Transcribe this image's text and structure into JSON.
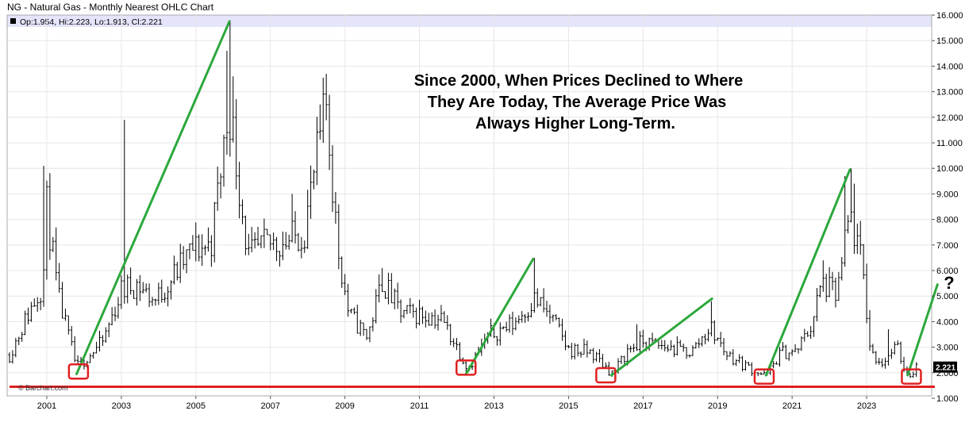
{
  "chart_data": {
    "type": "ohlc",
    "title": "NG - Natural Gas - Monthly Nearest OHLC Chart",
    "legend": "Op:1.954, Hi:2.223, Lo:1.913, Cl:2.221",
    "last_price_label": "2.221",
    "credit": "© Barchart.com",
    "annotation": [
      "Since 2000, When Prices Declined to Where",
      "They Are Today, The Average Price Was",
      "Always Higher Long-Term."
    ],
    "question_mark": "?",
    "ylim": [
      1.0,
      16.0
    ],
    "xlim": [
      2000.0,
      2025.0
    ],
    "y_ticks": [
      "1.000",
      "2.000",
      "3.000",
      "4.000",
      "5.000",
      "6.000",
      "7.000",
      "8.000",
      "9.000",
      "10.000",
      "11.000",
      "12.000",
      "13.000",
      "14.000",
      "15.000",
      "16.000"
    ],
    "x_ticks": [
      "2001",
      "2003",
      "2005",
      "2007",
      "2009",
      "2011",
      "2013",
      "2015",
      "2017",
      "2019",
      "2021",
      "2023"
    ],
    "support_level": 1.45,
    "colors": {
      "bars": "#000000",
      "trend_lines": "#2ca83c",
      "support_line": "#e02020",
      "boxes": "#e02020",
      "legend_band": "#e4e4fa"
    },
    "trend_lines": [
      {
        "x1": 2001.8,
        "y1": 1.95,
        "x2": 2005.9,
        "y2": 15.75
      },
      {
        "x1": 2012.25,
        "y1": 1.95,
        "x2": 2014.05,
        "y2": 6.45
      },
      {
        "x1": 2016.15,
        "y1": 1.9,
        "x2": 2018.85,
        "y2": 4.9
      },
      {
        "x1": 2020.3,
        "y1": 1.9,
        "x2": 2022.55,
        "y2": 9.95
      },
      {
        "x1": 2024.1,
        "y1": 1.9,
        "x2": 2024.9,
        "y2": 5.45
      }
    ],
    "bottom_boxes": [
      {
        "x": 2001.85,
        "y": 2.05
      },
      {
        "x": 2012.25,
        "y": 2.2
      },
      {
        "x": 2016.0,
        "y": 1.9
      },
      {
        "x": 2020.25,
        "y": 1.85
      },
      {
        "x": 2024.2,
        "y": 1.85
      }
    ],
    "anchors": [
      [
        2000.0,
        2.7
      ],
      [
        2000.5,
        4.3
      ],
      [
        2000.9,
        5.5
      ],
      [
        2001.0,
        8.5
      ],
      [
        2001.3,
        5.0
      ],
      [
        2001.8,
        2.2
      ],
      [
        2002.5,
        3.2
      ],
      [
        2003.0,
        5.2
      ],
      [
        2003.4,
        5.5
      ],
      [
        2003.9,
        4.8
      ],
      [
        2004.5,
        6.0
      ],
      [
        2004.9,
        6.8
      ],
      [
        2005.4,
        7.0
      ],
      [
        2005.9,
        12.5
      ],
      [
        2006.4,
        6.5
      ],
      [
        2006.9,
        7.0
      ],
      [
        2007.5,
        7.2
      ],
      [
        2007.9,
        7.5
      ],
      [
        2008.5,
        12.5
      ],
      [
        2008.8,
        7.0
      ],
      [
        2009.1,
        4.3
      ],
      [
        2009.6,
        3.4
      ],
      [
        2010.0,
        5.6
      ],
      [
        2010.5,
        4.3
      ],
      [
        2011.0,
        4.3
      ],
      [
        2011.6,
        4.1
      ],
      [
        2012.3,
        2.2
      ],
      [
        2012.9,
        3.5
      ],
      [
        2013.5,
        3.9
      ],
      [
        2014.1,
        4.9
      ],
      [
        2014.6,
        4.0
      ],
      [
        2015.0,
        2.9
      ],
      [
        2015.6,
        2.8
      ],
      [
        2016.2,
        1.95
      ],
      [
        2016.6,
        2.9
      ],
      [
        2017.0,
        3.2
      ],
      [
        2017.6,
        3.0
      ],
      [
        2018.3,
        2.8
      ],
      [
        2018.8,
        3.8
      ],
      [
        2019.2,
        2.8
      ],
      [
        2019.6,
        2.4
      ],
      [
        2020.3,
        1.85
      ],
      [
        2020.7,
        2.8
      ],
      [
        2021.1,
        2.8
      ],
      [
        2021.5,
        3.8
      ],
      [
        2021.8,
        5.5
      ],
      [
        2022.2,
        5.0
      ],
      [
        2022.55,
        8.2
      ],
      [
        2022.9,
        6.0
      ],
      [
        2023.1,
        2.8
      ],
      [
        2023.4,
        2.4
      ],
      [
        2023.8,
        3.0
      ],
      [
        2024.1,
        1.9
      ],
      [
        2024.35,
        2.2
      ]
    ]
  }
}
